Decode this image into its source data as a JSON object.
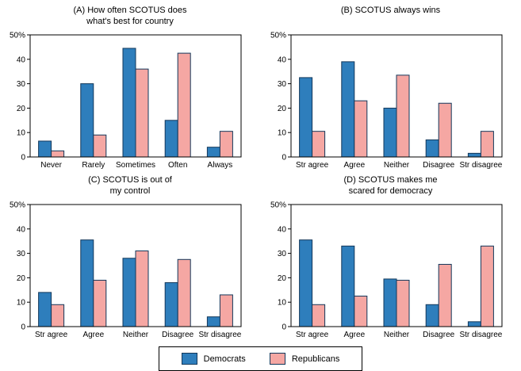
{
  "chart_style": {
    "bar_outline": "#13385b",
    "axis_color": "#000000",
    "background": "#ffffff"
  },
  "legend": {
    "position": "bottom-center",
    "entries": [
      {
        "label": "Democrats",
        "color": "#2e7ebc"
      },
      {
        "label": "Republicans",
        "color": "#f5a7a3"
      }
    ]
  },
  "chart_data": [
    {
      "type": "bar",
      "title": "(A) How often SCOTUS does what's best for country",
      "title_lines": [
        "(A) How often SCOTUS does",
        "what's best for country"
      ],
      "categories": [
        "Never",
        "Rarely",
        "Sometimes",
        "Often",
        "Always"
      ],
      "series": [
        {
          "name": "Democrats",
          "values": [
            6.5,
            30,
            44.5,
            15,
            4
          ]
        },
        {
          "name": "Republicans",
          "values": [
            2.5,
            9,
            36,
            42.5,
            10.5
          ]
        }
      ],
      "ylim": [
        0,
        50
      ],
      "grid": false,
      "yticks": [
        {
          "v": 0,
          "label": "0"
        },
        {
          "v": 10,
          "label": "10"
        },
        {
          "v": 20,
          "label": "20"
        },
        {
          "v": 30,
          "label": "30"
        },
        {
          "v": 40,
          "label": "40"
        },
        {
          "v": 50,
          "label": "50%"
        }
      ]
    },
    {
      "type": "bar",
      "title": "(B) SCOTUS always wins",
      "title_lines": [
        "(B) SCOTUS always wins"
      ],
      "categories": [
        "Str agree",
        "Agree",
        "Neither",
        "Disagree",
        "Str disagree"
      ],
      "series": [
        {
          "name": "Democrats",
          "values": [
            32.5,
            39,
            20,
            7,
            1.5
          ]
        },
        {
          "name": "Republicans",
          "values": [
            10.5,
            23,
            33.5,
            22,
            10.5
          ]
        }
      ],
      "ylim": [
        0,
        50
      ],
      "grid": false,
      "yticks": [
        {
          "v": 0,
          "label": "0"
        },
        {
          "v": 10,
          "label": "10"
        },
        {
          "v": 20,
          "label": "20"
        },
        {
          "v": 30,
          "label": "30"
        },
        {
          "v": 40,
          "label": "40"
        },
        {
          "v": 50,
          "label": "50%"
        }
      ]
    },
    {
      "type": "bar",
      "title": "(C) SCOTUS is out of my control",
      "title_lines": [
        "(C) SCOTUS is out of",
        "my control"
      ],
      "categories": [
        "Str agree",
        "Agree",
        "Neither",
        "Disagree",
        "Str disagree"
      ],
      "series": [
        {
          "name": "Democrats",
          "values": [
            14,
            35.5,
            28,
            18,
            4
          ]
        },
        {
          "name": "Republicans",
          "values": [
            9,
            19,
            31,
            27.5,
            13
          ]
        }
      ],
      "ylim": [
        0,
        50
      ],
      "grid": false,
      "yticks": [
        {
          "v": 0,
          "label": "0"
        },
        {
          "v": 10,
          "label": "10"
        },
        {
          "v": 20,
          "label": "20"
        },
        {
          "v": 30,
          "label": "30"
        },
        {
          "v": 40,
          "label": "40"
        },
        {
          "v": 50,
          "label": "50%"
        }
      ]
    },
    {
      "type": "bar",
      "title": "(D) SCOTUS makes me scared for democracy",
      "title_lines": [
        "(D) SCOTUS makes me",
        "scared for democracy"
      ],
      "categories": [
        "Str agree",
        "Agree",
        "Neither",
        "Disagree",
        "Str disagree"
      ],
      "series": [
        {
          "name": "Democrats",
          "values": [
            35.5,
            33,
            19.5,
            9,
            2
          ]
        },
        {
          "name": "Republicans",
          "values": [
            9,
            12.5,
            19,
            25.5,
            33
          ]
        }
      ],
      "ylim": [
        0,
        50
      ],
      "grid": false,
      "yticks": [
        {
          "v": 0,
          "label": "0"
        },
        {
          "v": 10,
          "label": "10"
        },
        {
          "v": 20,
          "label": "20"
        },
        {
          "v": 30,
          "label": "30"
        },
        {
          "v": 40,
          "label": "40"
        },
        {
          "v": 50,
          "label": "50%"
        }
      ]
    }
  ]
}
